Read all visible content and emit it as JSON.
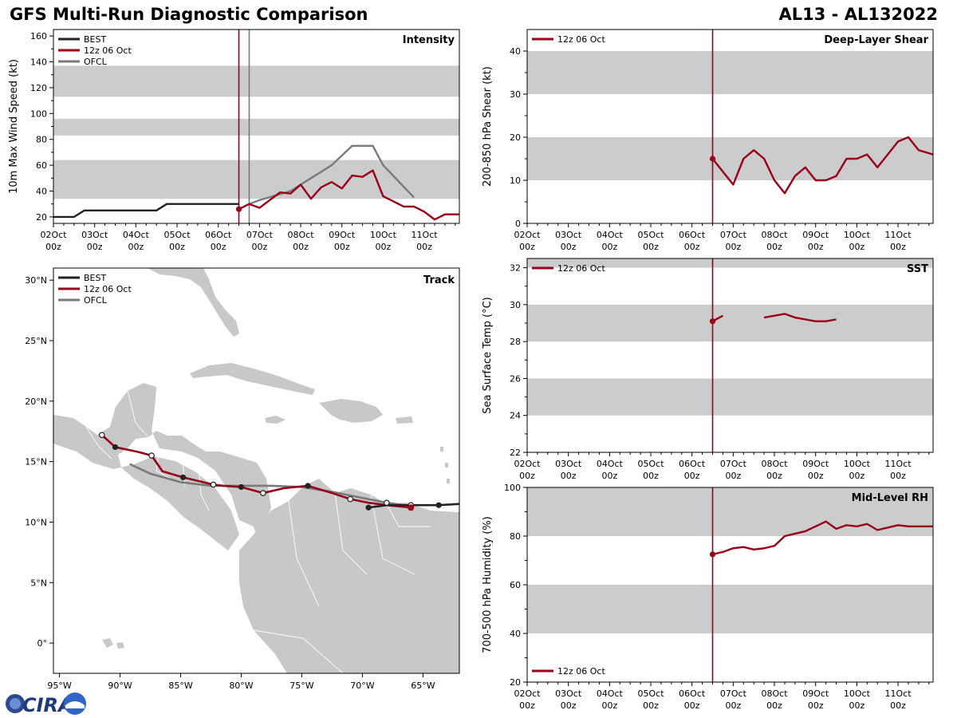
{
  "page": {
    "title": "GFS Multi-Run Diagnostic Comparison",
    "storm_id": "AL13 - AL132022",
    "logo_text": "CIRA"
  },
  "colors": {
    "best": "#222222",
    "run": "#99001a",
    "ofcl": "#7a7a7a",
    "band": "#cccccc",
    "land": "#c8c8c8"
  },
  "time_axis": {
    "start_day": 2,
    "end_day": 11.85,
    "ticks": [
      {
        "day": 2,
        "label": "02Oct"
      },
      {
        "day": 3,
        "label": "03Oct"
      },
      {
        "day": 4,
        "label": "04Oct"
      },
      {
        "day": 5,
        "label": "05Oct"
      },
      {
        "day": 6,
        "label": "06Oct"
      },
      {
        "day": 7,
        "label": "07Oct"
      },
      {
        "day": 8,
        "label": "08Oct"
      },
      {
        "day": 9,
        "label": "09Oct"
      },
      {
        "day": 10,
        "label": "10Oct"
      },
      {
        "day": 11,
        "label": "11Oct"
      }
    ],
    "sublabel": "00z",
    "init_day": 6.5,
    "ofcl_day": 6.75
  },
  "chart_data": [
    {
      "id": "intensity",
      "type": "line",
      "title": "Intensity",
      "ylabel": "10m Max Wind Speed (kt)",
      "ylim": [
        15,
        165
      ],
      "yticks": [
        20,
        40,
        60,
        80,
        100,
        120,
        140,
        160
      ],
      "bands": [
        [
          34,
          64
        ],
        [
          83,
          96
        ],
        [
          113,
          137
        ]
      ],
      "legend": [
        "BEST",
        "12z 06 Oct",
        "OFCL"
      ],
      "series": [
        {
          "name": "BEST",
          "role": "best",
          "x": [
            2,
            2.5,
            2.75,
            3,
            4,
            4.5,
            4.75,
            5,
            6,
            6.5
          ],
          "y": [
            20,
            20,
            25,
            25,
            25,
            25,
            30,
            30,
            30,
            30
          ]
        },
        {
          "name": "12z 06 Oct",
          "role": "run",
          "x": [
            6.5,
            6.75,
            7,
            7.25,
            7.5,
            7.75,
            8,
            8.25,
            8.5,
            8.75,
            9,
            9.25,
            9.5,
            9.75,
            10,
            10.25,
            10.5,
            10.75,
            11,
            11.25,
            11.5,
            11.85
          ],
          "y": [
            26,
            30,
            27,
            33,
            39,
            38,
            45,
            34,
            43,
            47,
            42,
            52,
            51,
            56,
            36,
            32,
            28,
            28,
            24,
            18,
            22,
            22
          ]
        },
        {
          "name": "OFCL",
          "role": "ofcl",
          "x": [
            6.75,
            7,
            7.75,
            8,
            8.75,
            9.25,
            9.75,
            10,
            10.75
          ],
          "y": [
            30,
            33,
            40,
            45,
            60,
            75,
            75,
            60,
            35
          ]
        }
      ]
    },
    {
      "id": "shear",
      "type": "line",
      "title": "Deep-Layer Shear",
      "ylabel": "200-850 hPa Shear (kt)",
      "ylim": [
        0,
        45
      ],
      "yticks": [
        0,
        10,
        20,
        30,
        40
      ],
      "bands": [
        [
          10,
          20
        ],
        [
          30,
          40
        ]
      ],
      "legend": [
        "12z 06 Oct"
      ],
      "series": [
        {
          "name": "12z 06 Oct",
          "role": "run",
          "x": [
            6.5,
            7,
            7.25,
            7.5,
            7.75,
            8,
            8.25,
            8.5,
            8.75,
            9,
            9.25,
            9.5,
            9.75,
            10,
            10.25,
            10.5,
            10.75,
            11,
            11.25,
            11.5,
            11.85
          ],
          "y": [
            15,
            9,
            15,
            17,
            15,
            10,
            7,
            11,
            13,
            10,
            10,
            11,
            15,
            15,
            16,
            13,
            16,
            19,
            20,
            17,
            16
          ]
        }
      ]
    },
    {
      "id": "sst",
      "type": "line",
      "title": "SST",
      "ylabel": "Sea Surface Temp (°C)",
      "ylim": [
        22,
        32.5
      ],
      "yticks": [
        22,
        24,
        26,
        28,
        30,
        32
      ],
      "bands": [
        [
          24,
          26
        ],
        [
          28,
          30
        ],
        [
          32,
          34
        ]
      ],
      "legend": [
        "12z 06 Oct"
      ],
      "series": [
        {
          "name": "12z 06 Oct",
          "role": "run",
          "x": [
            6.5,
            6.75
          ],
          "y": [
            29.1,
            29.4
          ]
        },
        {
          "name": "12z 06 Oct",
          "role": "run",
          "x": [
            7.75,
            8.25,
            8.5,
            9,
            9.25,
            9.5
          ],
          "y": [
            29.3,
            29.5,
            29.3,
            29.1,
            29.1,
            29.2
          ]
        }
      ]
    },
    {
      "id": "rh",
      "type": "line",
      "title": "Mid-Level RH",
      "ylabel": "700-500 hPa Humidity (%)",
      "ylim": [
        20,
        100
      ],
      "yticks": [
        20,
        40,
        60,
        80,
        100
      ],
      "bands": [
        [
          40,
          60
        ],
        [
          80,
          100
        ]
      ],
      "legend": [
        "12z 06 Oct"
      ],
      "series": [
        {
          "name": "12z 06 Oct",
          "role": "run",
          "x": [
            6.5,
            6.75,
            7,
            7.25,
            7.5,
            7.75,
            8,
            8.25,
            8.5,
            8.75,
            9,
            9.25,
            9.5,
            9.75,
            10,
            10.25,
            10.5,
            10.75,
            11,
            11.25,
            11.5,
            11.85
          ],
          "y": [
            72.5,
            73.5,
            75,
            75.5,
            74.5,
            75,
            76,
            80,
            81,
            82,
            84,
            86,
            83,
            84.5,
            84,
            85,
            82.5,
            83.5,
            84.5,
            84,
            84,
            84
          ]
        }
      ]
    },
    {
      "id": "track",
      "type": "line",
      "title": "Track",
      "legend": [
        "BEST",
        "12z 06 Oct",
        "OFCL"
      ],
      "lon_range": [
        -95.5,
        -62
      ],
      "lat_range": [
        -2.5,
        31
      ],
      "xticks": [
        {
          "v": -95,
          "label": "95°W"
        },
        {
          "v": -90,
          "label": "90°W"
        },
        {
          "v": -85,
          "label": "85°W"
        },
        {
          "v": -80,
          "label": "80°W"
        },
        {
          "v": -75,
          "label": "75°W"
        },
        {
          "v": -70,
          "label": "70°W"
        },
        {
          "v": -65,
          "label": "65°W"
        }
      ],
      "yticks": [
        {
          "v": 0,
          "label": "0°"
        },
        {
          "v": 5,
          "label": "5°N"
        },
        {
          "v": 10,
          "label": "10°N"
        },
        {
          "v": 15,
          "label": "15°N"
        },
        {
          "v": 20,
          "label": "20°N"
        },
        {
          "v": 25,
          "label": "25°N"
        },
        {
          "v": 30,
          "label": "30°N"
        }
      ],
      "series": [
        {
          "name": "BEST",
          "role": "best",
          "lon": [
            -62,
            -63.7,
            -66,
            -68,
            -69.5
          ],
          "lat": [
            11.5,
            11.4,
            11.4,
            11.4,
            11.2
          ],
          "filled_points": [
            1,
            4
          ],
          "open_points": [
            2
          ]
        },
        {
          "name": "12z 06 Oct",
          "role": "run",
          "lon": [
            -66,
            -68,
            -69.5,
            -71,
            -72.5,
            -74.5,
            -76.5,
            -78.2,
            -80,
            -81.5,
            -82.3,
            -84.8,
            -86.5,
            -87.4,
            -88.5,
            -90.4,
            -91.5
          ],
          "lat": [
            11.2,
            11.4,
            11.6,
            11.9,
            12.4,
            13.0,
            12.8,
            12.4,
            12.9,
            13.0,
            13.1,
            13.7,
            14.2,
            15.5,
            15.8,
            16.2,
            17.2
          ],
          "filled_points": [
            0,
            5,
            8,
            11,
            15
          ],
          "open_points": [
            3,
            7,
            10,
            13,
            16
          ]
        },
        {
          "name": "OFCL",
          "role": "ofcl",
          "lon": [
            -66.5,
            -68,
            -70,
            -72.5,
            -75,
            -77.5,
            -80,
            -82.5,
            -85,
            -87.5,
            -89.2
          ],
          "lat": [
            11.4,
            11.6,
            12.0,
            12.5,
            12.9,
            13.0,
            13.0,
            13.0,
            13.3,
            14.0,
            14.8
          ],
          "filled_points": [],
          "open_points": [
            1
          ]
        }
      ]
    }
  ]
}
